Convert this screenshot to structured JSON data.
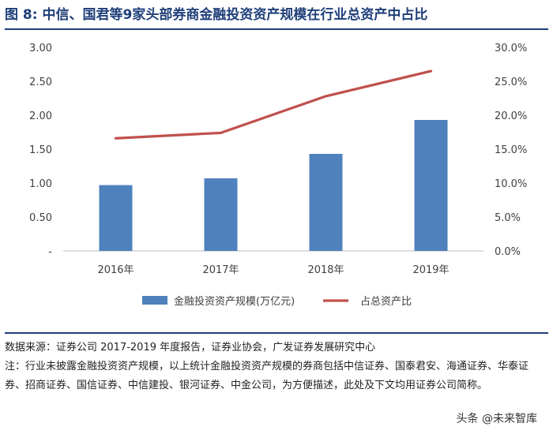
{
  "figure": {
    "label": "图 8:",
    "title": "中信、国君等9家头部券商金融投资资产规模在行业总资产中占比"
  },
  "chart_data": {
    "type": "bar",
    "categories": [
      "2016年",
      "2017年",
      "2018年",
      "2019年"
    ],
    "series": [
      {
        "name": "金融投资资产规模(万亿元)",
        "type": "bar",
        "axis": "left",
        "color": "#4f81bd",
        "values": [
          0.97,
          1.07,
          1.43,
          1.93
        ]
      },
      {
        "name": "占总资产比",
        "type": "line",
        "axis": "right",
        "color": "#c0504d",
        "values": [
          0.166,
          0.174,
          0.228,
          0.265
        ]
      }
    ],
    "y_left": {
      "min": 0,
      "max": 3.0,
      "tick_labels": [
        "-",
        "0.50",
        "1.00",
        "1.50",
        "2.00",
        "2.50",
        "3.00"
      ]
    },
    "y_right": {
      "min": 0,
      "max": 0.3,
      "tick_labels": [
        "0.0%",
        "5.0%",
        "10.0%",
        "15.0%",
        "20.0%",
        "25.0%",
        "30.0%"
      ]
    },
    "grid": false,
    "legend_position": "bottom"
  },
  "notes": {
    "source": "数据来源：证券公司 2017-2019 年度报告，证券业协会，广发证券发展研究中心",
    "note": "注：行业未披露金融投资资产规模，以上统计金融投资资产规模的券商包括中信证券、国泰君安、海通证券、华泰证券、招商证券、国信证券、中信建投、银河证券、中金公司，为方便描述，此处及下文均用证券公司简称。"
  },
  "watermark": {
    "text": "头条 @未来智库"
  }
}
